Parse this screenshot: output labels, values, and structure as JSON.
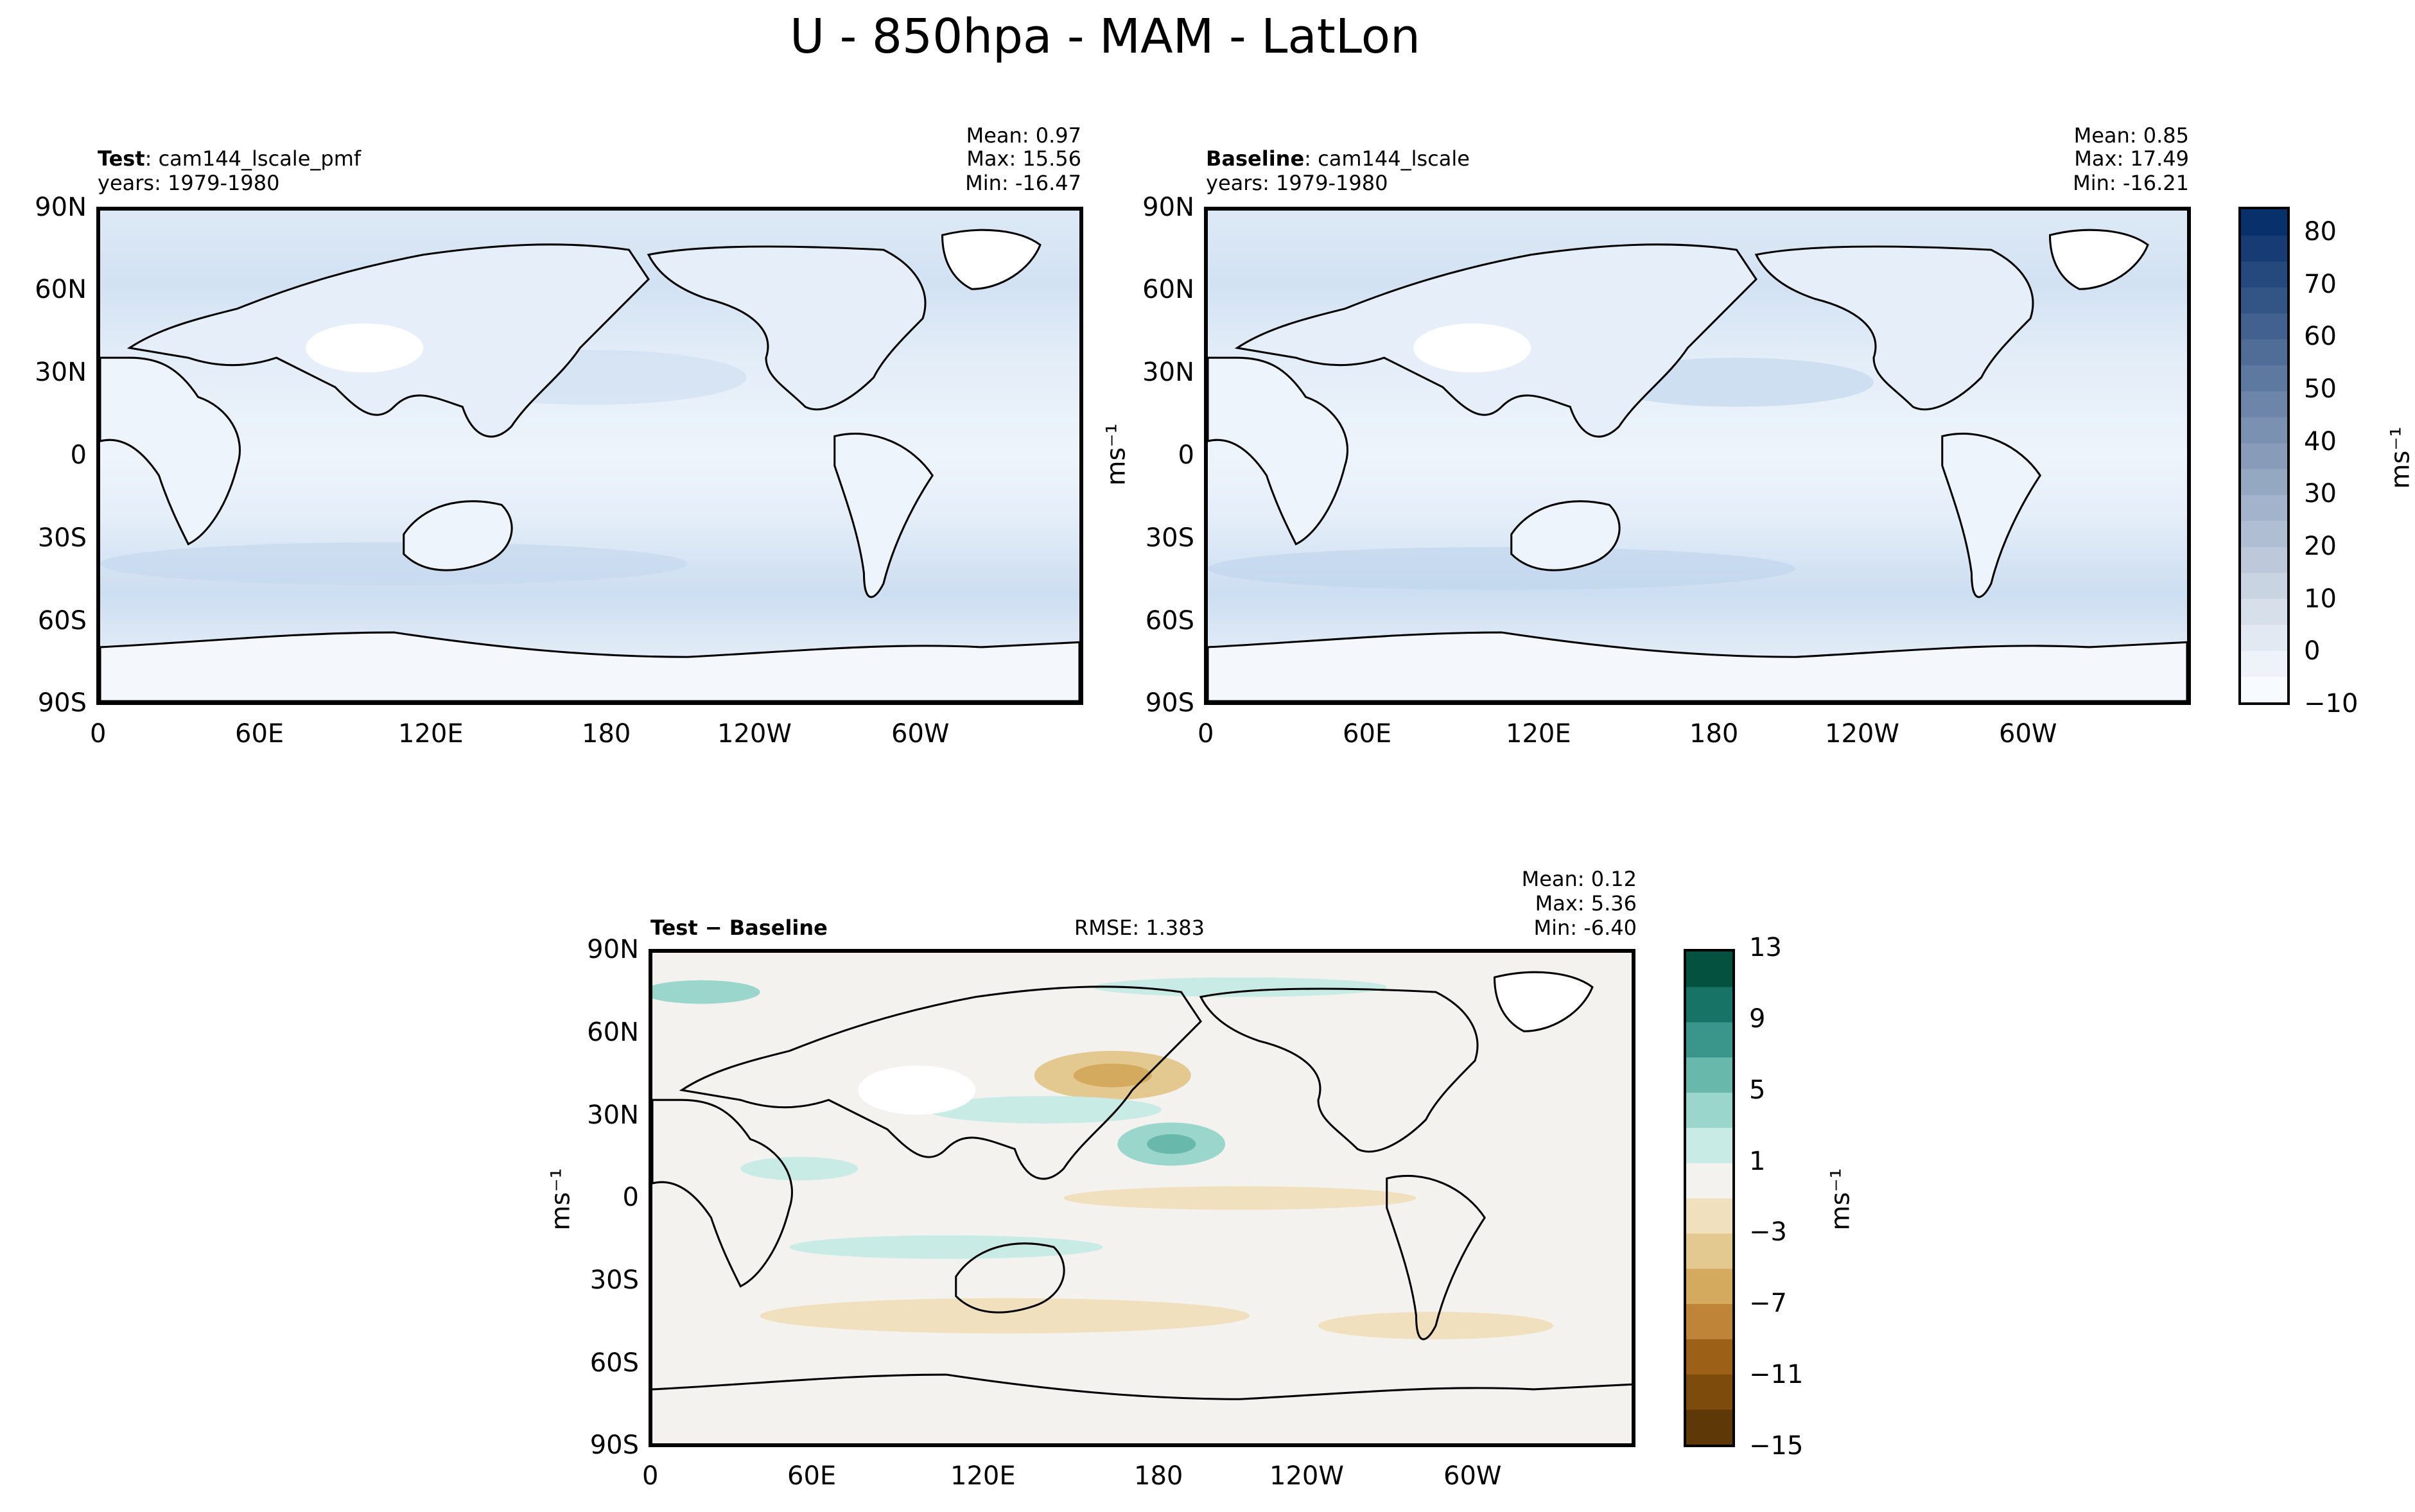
{
  "title": "U - 850hpa - MAM - LatLon",
  "panels": {
    "test": {
      "label_bold": "Test",
      "label_rest": ": cam144_lscale_pmf",
      "years": "years: 1979-1980",
      "mean": "Mean:  0.97",
      "max": "Max: 15.56",
      "min": "Min: -16.47"
    },
    "baseline": {
      "label_bold": "Baseline",
      "label_rest": ": cam144_lscale",
      "years": "years: 1979-1980",
      "mean": "Mean:  0.85",
      "max": "Max: 17.49",
      "min": "Min: -16.21"
    },
    "diff": {
      "label": "Test − Baseline",
      "rmse": "RMSE: 1.383",
      "mean": "Mean:  0.12",
      "max": "Max:  5.36",
      "min": "Min: -6.40"
    }
  },
  "axes": {
    "lat_ticks": [
      "90N",
      "60N",
      "30N",
      "0",
      "30S",
      "60S",
      "90S"
    ],
    "lon_ticks": [
      "0",
      "60E",
      "120E",
      "180",
      "120W",
      "60W"
    ]
  },
  "colorbars": {
    "top": {
      "unit": "ms⁻¹",
      "ticks": [
        "−10",
        "0",
        "10",
        "20",
        "30",
        "40",
        "50",
        "60",
        "70",
        "80"
      ],
      "range": [
        -10,
        85
      ],
      "levels": 19,
      "colormap": "Blues"
    },
    "diff": {
      "unit": "ms⁻¹",
      "ticks": [
        "−15",
        "−11",
        "−7",
        "−3",
        "1",
        "5",
        "9",
        "13"
      ],
      "range": [
        -15,
        13
      ],
      "colormap": "BrBG",
      "colors": [
        "#5e3806",
        "#7d4c0c",
        "#9c6116",
        "#bf8438",
        "#d4aa5f",
        "#e3c88f",
        "#f0e0bd",
        "#f3f2ee",
        "#c9ebe5",
        "#9ad6cb",
        "#68b8ac",
        "#3a968a",
        "#177366",
        "#04513f"
      ]
    }
  },
  "side_labels": {
    "middle_unit": "ms⁻¹",
    "diff_left_unit": "ms⁻¹"
  },
  "chart_data": [
    {
      "type": "heatmap",
      "title": "Test: cam144_lscale_pmf",
      "xlabel": "",
      "ylabel": "",
      "x_range": [
        "0",
        "360"
      ],
      "y_range": [
        -90,
        90
      ],
      "stats": {
        "mean": 0.97,
        "max": 15.56,
        "min": -16.47
      }
    },
    {
      "type": "heatmap",
      "title": "Baseline: cam144_lscale",
      "xlabel": "",
      "ylabel": "",
      "x_range": [
        "0",
        "360"
      ],
      "y_range": [
        -90,
        90
      ],
      "stats": {
        "mean": 0.85,
        "max": 17.49,
        "min": -16.21
      }
    },
    {
      "type": "heatmap",
      "title": "Test − Baseline",
      "xlabel": "",
      "ylabel": "",
      "x_range": [
        "0",
        "360"
      ],
      "y_range": [
        -90,
        90
      ],
      "stats": {
        "mean": 0.12,
        "max": 5.36,
        "min": -6.4,
        "rmse": 1.383
      }
    }
  ]
}
